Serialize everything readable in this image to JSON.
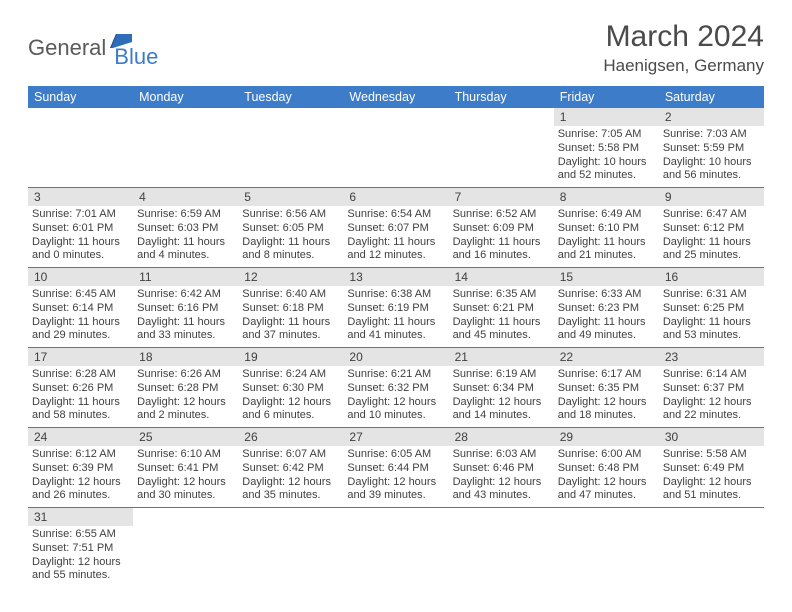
{
  "logo": {
    "text1": "General",
    "text2": "Blue"
  },
  "title": "March 2024",
  "location": "Haenigsen, Germany",
  "colors": {
    "header_bg": "#3d7cc9",
    "header_fg": "#ffffff",
    "daynum_bg": "#e4e4e4",
    "text": "#404040",
    "rule": "#3d7cc9"
  },
  "weekdays": [
    "Sunday",
    "Monday",
    "Tuesday",
    "Wednesday",
    "Thursday",
    "Friday",
    "Saturday"
  ],
  "weeks": [
    [
      null,
      null,
      null,
      null,
      null,
      {
        "n": "1",
        "sunrise": "7:05 AM",
        "sunset": "5:58 PM",
        "daylight": "10 hours and 52 minutes."
      },
      {
        "n": "2",
        "sunrise": "7:03 AM",
        "sunset": "5:59 PM",
        "daylight": "10 hours and 56 minutes."
      }
    ],
    [
      {
        "n": "3",
        "sunrise": "7:01 AM",
        "sunset": "6:01 PM",
        "daylight": "11 hours and 0 minutes."
      },
      {
        "n": "4",
        "sunrise": "6:59 AM",
        "sunset": "6:03 PM",
        "daylight": "11 hours and 4 minutes."
      },
      {
        "n": "5",
        "sunrise": "6:56 AM",
        "sunset": "6:05 PM",
        "daylight": "11 hours and 8 minutes."
      },
      {
        "n": "6",
        "sunrise": "6:54 AM",
        "sunset": "6:07 PM",
        "daylight": "11 hours and 12 minutes."
      },
      {
        "n": "7",
        "sunrise": "6:52 AM",
        "sunset": "6:09 PM",
        "daylight": "11 hours and 16 minutes."
      },
      {
        "n": "8",
        "sunrise": "6:49 AM",
        "sunset": "6:10 PM",
        "daylight": "11 hours and 21 minutes."
      },
      {
        "n": "9",
        "sunrise": "6:47 AM",
        "sunset": "6:12 PM",
        "daylight": "11 hours and 25 minutes."
      }
    ],
    [
      {
        "n": "10",
        "sunrise": "6:45 AM",
        "sunset": "6:14 PM",
        "daylight": "11 hours and 29 minutes."
      },
      {
        "n": "11",
        "sunrise": "6:42 AM",
        "sunset": "6:16 PM",
        "daylight": "11 hours and 33 minutes."
      },
      {
        "n": "12",
        "sunrise": "6:40 AM",
        "sunset": "6:18 PM",
        "daylight": "11 hours and 37 minutes."
      },
      {
        "n": "13",
        "sunrise": "6:38 AM",
        "sunset": "6:19 PM",
        "daylight": "11 hours and 41 minutes."
      },
      {
        "n": "14",
        "sunrise": "6:35 AM",
        "sunset": "6:21 PM",
        "daylight": "11 hours and 45 minutes."
      },
      {
        "n": "15",
        "sunrise": "6:33 AM",
        "sunset": "6:23 PM",
        "daylight": "11 hours and 49 minutes."
      },
      {
        "n": "16",
        "sunrise": "6:31 AM",
        "sunset": "6:25 PM",
        "daylight": "11 hours and 53 minutes."
      }
    ],
    [
      {
        "n": "17",
        "sunrise": "6:28 AM",
        "sunset": "6:26 PM",
        "daylight": "11 hours and 58 minutes."
      },
      {
        "n": "18",
        "sunrise": "6:26 AM",
        "sunset": "6:28 PM",
        "daylight": "12 hours and 2 minutes."
      },
      {
        "n": "19",
        "sunrise": "6:24 AM",
        "sunset": "6:30 PM",
        "daylight": "12 hours and 6 minutes."
      },
      {
        "n": "20",
        "sunrise": "6:21 AM",
        "sunset": "6:32 PM",
        "daylight": "12 hours and 10 minutes."
      },
      {
        "n": "21",
        "sunrise": "6:19 AM",
        "sunset": "6:34 PM",
        "daylight": "12 hours and 14 minutes."
      },
      {
        "n": "22",
        "sunrise": "6:17 AM",
        "sunset": "6:35 PM",
        "daylight": "12 hours and 18 minutes."
      },
      {
        "n": "23",
        "sunrise": "6:14 AM",
        "sunset": "6:37 PM",
        "daylight": "12 hours and 22 minutes."
      }
    ],
    [
      {
        "n": "24",
        "sunrise": "6:12 AM",
        "sunset": "6:39 PM",
        "daylight": "12 hours and 26 minutes."
      },
      {
        "n": "25",
        "sunrise": "6:10 AM",
        "sunset": "6:41 PM",
        "daylight": "12 hours and 30 minutes."
      },
      {
        "n": "26",
        "sunrise": "6:07 AM",
        "sunset": "6:42 PM",
        "daylight": "12 hours and 35 minutes."
      },
      {
        "n": "27",
        "sunrise": "6:05 AM",
        "sunset": "6:44 PM",
        "daylight": "12 hours and 39 minutes."
      },
      {
        "n": "28",
        "sunrise": "6:03 AM",
        "sunset": "6:46 PM",
        "daylight": "12 hours and 43 minutes."
      },
      {
        "n": "29",
        "sunrise": "6:00 AM",
        "sunset": "6:48 PM",
        "daylight": "12 hours and 47 minutes."
      },
      {
        "n": "30",
        "sunrise": "5:58 AM",
        "sunset": "6:49 PM",
        "daylight": "12 hours and 51 minutes."
      }
    ],
    [
      {
        "n": "31",
        "sunrise": "6:55 AM",
        "sunset": "7:51 PM",
        "daylight": "12 hours and 55 minutes."
      },
      null,
      null,
      null,
      null,
      null,
      null
    ]
  ]
}
